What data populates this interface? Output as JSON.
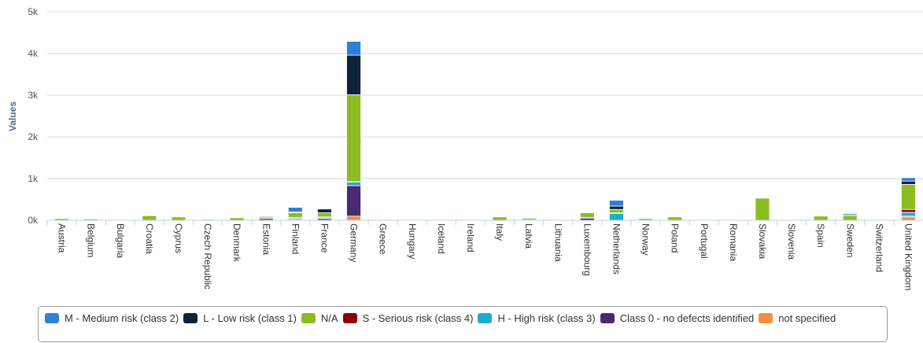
{
  "chart_data": {
    "type": "bar",
    "stacked": true,
    "title": "",
    "xlabel": "",
    "ylabel": "Values",
    "ylim": [
      0,
      5000
    ],
    "yticks": [
      "0k",
      "1k",
      "2k",
      "3k",
      "4k",
      "5k"
    ],
    "grid": true,
    "legend_position": "bottom",
    "categories": [
      "Austria",
      "Belgium",
      "Bulgaria",
      "Croatia",
      "Cyprus",
      "Czech Republic",
      "Denmark",
      "Estonia",
      "Finland",
      "France",
      "Germany",
      "Greece",
      "Hungary",
      "Iceland",
      "Ireland",
      "Italy",
      "Latvia",
      "Lithuania",
      "Luxembourg",
      "Netherlands",
      "Norway",
      "Poland",
      "Portugal",
      "Romania",
      "Slovakia",
      "Slovenia",
      "Spain",
      "Sweden",
      "Switzerland",
      "United Kingdom"
    ],
    "series": [
      {
        "name": "not specified",
        "color": "#f28f43",
        "values": [
          0,
          0,
          0,
          0,
          0,
          0,
          0,
          0,
          10,
          0,
          100,
          0,
          0,
          0,
          0,
          0,
          0,
          0,
          0,
          0,
          0,
          0,
          0,
          0,
          0,
          0,
          0,
          0,
          0,
          80
        ]
      },
      {
        "name": "Class 0 - no defects identified",
        "color": "#492970",
        "values": [
          0,
          0,
          0,
          0,
          0,
          0,
          0,
          40,
          10,
          40,
          730,
          0,
          10,
          0,
          0,
          0,
          0,
          0,
          60,
          0,
          0,
          0,
          0,
          0,
          0,
          0,
          0,
          0,
          0,
          20
        ]
      },
      {
        "name": "H - High risk (class 3)",
        "color": "#1aadce",
        "values": [
          0,
          0,
          0,
          0,
          0,
          0,
          0,
          0,
          40,
          30,
          90,
          0,
          0,
          0,
          0,
          0,
          10,
          0,
          0,
          160,
          0,
          0,
          0,
          0,
          0,
          0,
          0,
          0,
          0,
          90
        ]
      },
      {
        "name": "S - Serious risk (class 4)",
        "color": "#910000",
        "values": [
          0,
          0,
          0,
          0,
          0,
          0,
          0,
          0,
          10,
          10,
          10,
          0,
          0,
          0,
          0,
          0,
          0,
          0,
          10,
          20,
          0,
          0,
          0,
          0,
          0,
          0,
          0,
          0,
          0,
          70
        ]
      },
      {
        "name": "N/A",
        "color": "#8bbc21",
        "values": [
          40,
          30,
          0,
          110,
          80,
          20,
          60,
          40,
          110,
          100,
          2080,
          0,
          0,
          0,
          0,
          80,
          40,
          0,
          110,
          80,
          40,
          80,
          0,
          0,
          530,
          0,
          100,
          120,
          0,
          600
        ]
      },
      {
        "name": "L - Low risk (class 1)",
        "color": "#0d233a",
        "values": [
          0,
          0,
          0,
          0,
          0,
          0,
          0,
          10,
          20,
          90,
          950,
          0,
          0,
          0,
          0,
          0,
          0,
          0,
          0,
          80,
          0,
          0,
          0,
          0,
          0,
          0,
          0,
          10,
          0,
          80
        ]
      },
      {
        "name": "M - Medium risk (class 2)",
        "color": "#2f7ed8",
        "values": [
          0,
          0,
          0,
          0,
          0,
          0,
          0,
          0,
          110,
          0,
          330,
          0,
          0,
          0,
          0,
          0,
          0,
          0,
          0,
          140,
          0,
          0,
          0,
          0,
          0,
          0,
          0,
          30,
          0,
          80
        ]
      }
    ],
    "legend_order": [
      "M - Medium risk (class 2)",
      "L - Low risk (class 1)",
      "N/A",
      "S - Serious risk (class 4)",
      "H - High risk (class 3)",
      "Class 0 - no defects identified",
      "not specified"
    ]
  }
}
